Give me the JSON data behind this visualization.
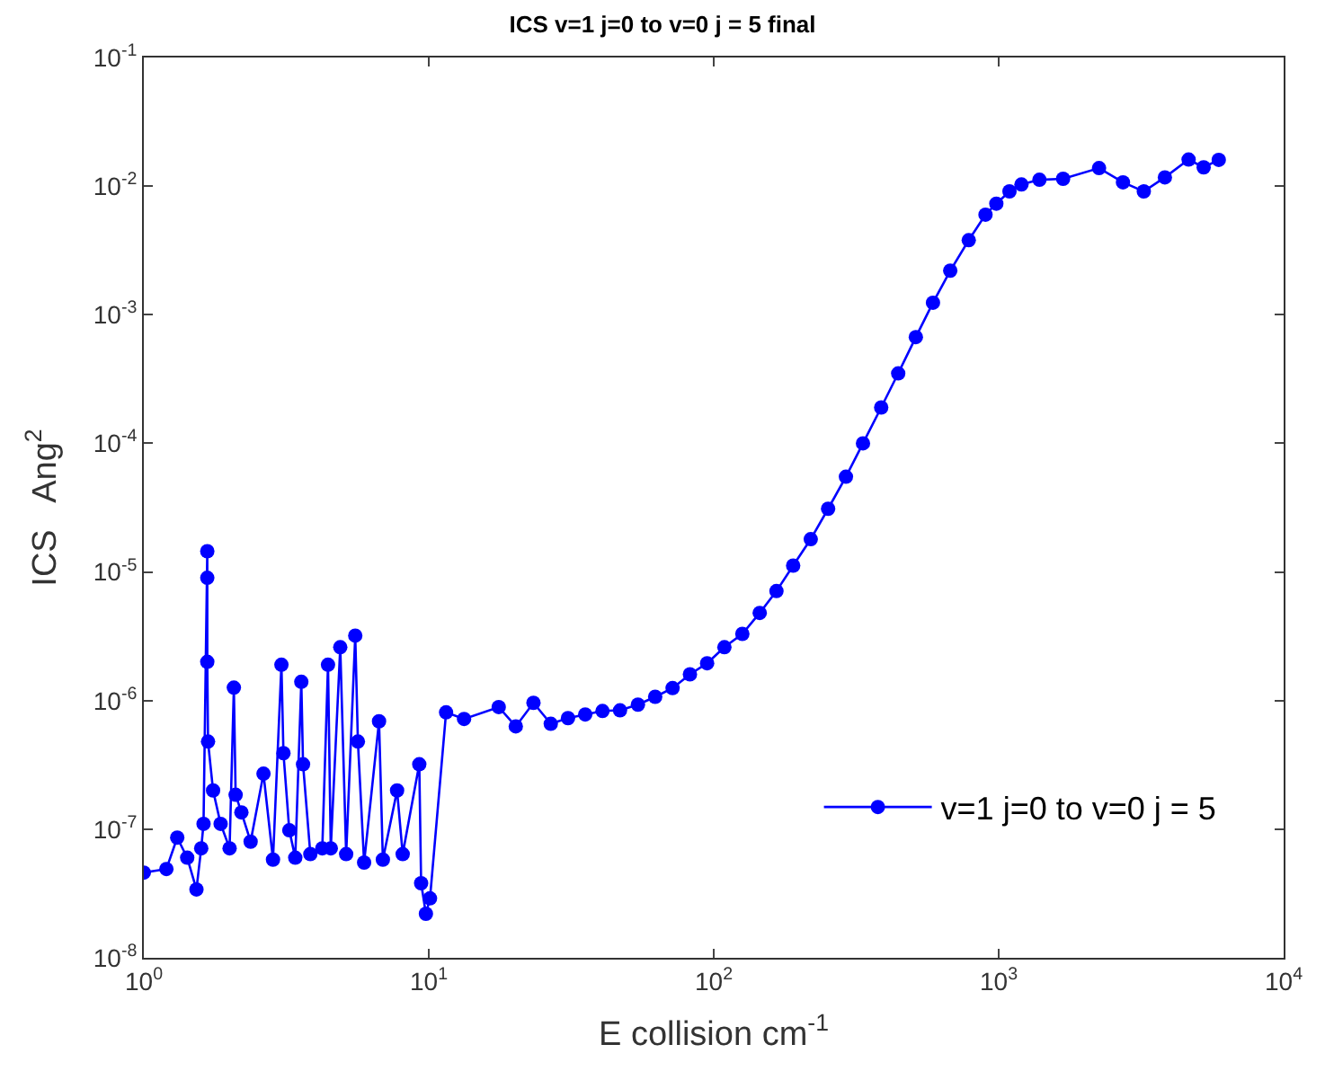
{
  "chart_data": {
    "type": "line",
    "title": "ICS v=1 j=0 to v=0 j = 5 final",
    "xlabel": "E collision cm$^{-1}$",
    "ylabel": "ICS   Ang$^{2}$",
    "log": "xy",
    "legend": "bottom right",
    "marker": "circle",
    "line_style": "solid",
    "xlim": [
      1,
      10000
    ],
    "ylim": [
      1e-08,
      0.1
    ],
    "xticks": [
      {
        "value": 1,
        "label": "10$^{0}$"
      },
      {
        "value": 10,
        "label": "10$^{1}$"
      },
      {
        "value": 100,
        "label": "10$^{2}$"
      },
      {
        "value": 1000,
        "label": "10$^{3}$"
      },
      {
        "value": 10000,
        "label": "10$^{4}$"
      }
    ],
    "yticks": [
      {
        "value": 1e-08,
        "label": "10$^{-8}$"
      },
      {
        "value": 1e-07,
        "label": "10$^{-7}$"
      },
      {
        "value": 1e-06,
        "label": "10$^{-6}$"
      },
      {
        "value": 1e-05,
        "label": "10$^{-5}$"
      },
      {
        "value": 0.0001,
        "label": "10$^{-4}$"
      },
      {
        "value": 0.001,
        "label": "10$^{-3}$"
      },
      {
        "value": 0.01,
        "label": "10$^{-2}$"
      },
      {
        "value": 0.1,
        "label": "10$^{-1}$"
      }
    ],
    "series": [
      {
        "name": "v=1 j=0 to v=0 j = 5",
        "color": "#0000ff",
        "x": [
          1.0,
          1.2,
          1.31,
          1.42,
          1.53,
          1.59,
          1.62,
          1.67,
          1.67,
          1.67,
          1.68,
          1.75,
          1.86,
          2.0,
          2.07,
          2.1,
          2.2,
          2.37,
          2.63,
          2.84,
          3.04,
          3.09,
          3.24,
          3.4,
          3.57,
          3.62,
          3.84,
          4.23,
          4.43,
          4.53,
          4.89,
          5.13,
          5.52,
          5.64,
          5.93,
          6.69,
          6.9,
          7.74,
          8.1,
          9.26,
          9.4,
          9.77,
          10.1,
          11.5,
          13.3,
          17.6,
          20.2,
          23.3,
          26.8,
          30.8,
          35.4,
          40.7,
          46.9,
          54.2,
          62.3,
          71.7,
          82.5,
          94.8,
          109,
          126,
          145,
          166,
          190,
          219,
          252,
          291,
          334,
          387,
          444,
          512,
          588,
          676,
          785,
          899,
          981,
          1091,
          1202,
          1390,
          1683,
          2250,
          2730,
          3230,
          3830,
          4640,
          5240,
          5920
        ],
        "values": [
          4.6e-08,
          4.9e-08,
          8.6e-08,
          6e-08,
          3.4e-08,
          7.1e-08,
          1.1e-07,
          1.45e-05,
          9e-06,
          2e-06,
          4.8e-07,
          2e-07,
          1.1e-07,
          7.1e-08,
          1.26e-06,
          1.85e-07,
          1.35e-07,
          8e-08,
          2.7e-07,
          5.8e-08,
          1.9e-06,
          3.9e-07,
          9.8e-08,
          6e-08,
          1.4e-06,
          3.2e-07,
          6.4e-08,
          7.1e-08,
          1.9e-06,
          7.1e-08,
          2.6e-06,
          6.4e-08,
          3.2e-06,
          4.8e-07,
          5.5e-08,
          6.9e-07,
          5.8e-08,
          2e-07,
          6.4e-08,
          3.2e-07,
          3.8e-08,
          2.2e-08,
          2.9e-08,
          8.1e-07,
          7.2e-07,
          8.9e-07,
          6.3e-07,
          9.6e-07,
          6.6e-07,
          7.3e-07,
          7.8e-07,
          8.3e-07,
          8.4e-07,
          9.3e-07,
          1.07e-06,
          1.25e-06,
          1.6e-06,
          1.95e-06,
          2.6e-06,
          3.3e-06,
          4.8e-06,
          7.1e-06,
          1.12e-05,
          1.8e-05,
          3.1e-05,
          5.5e-05,
          0.0001,
          0.00019,
          0.00035,
          0.00067,
          0.00124,
          0.0022,
          0.0038,
          0.006,
          0.0073,
          0.0091,
          0.0103,
          0.0112,
          0.0114,
          0.0138,
          0.0107,
          0.0091,
          0.0117,
          0.0161,
          0.014,
          0.016
        ]
      }
    ]
  }
}
